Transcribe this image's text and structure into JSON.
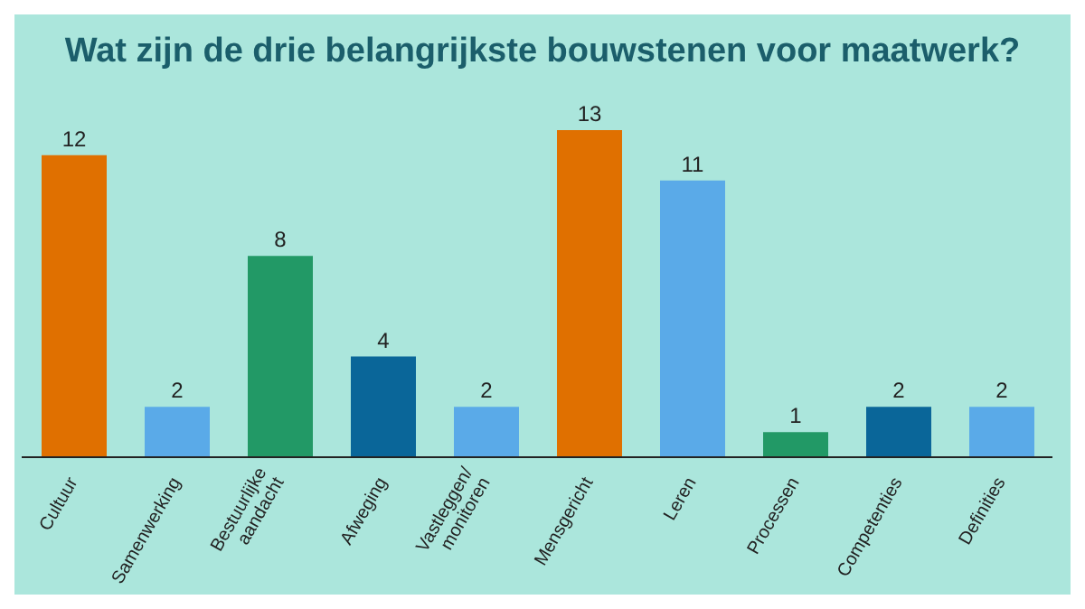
{
  "chart_data": {
    "type": "bar",
    "title": "Wat zijn de drie belangrijkste bouwstenen voor maatwerk?",
    "categories": [
      "Cultuur",
      "Samenwerking",
      "Bestuurlijke aandacht",
      "Afweging",
      "Vastleggen/ monitoren",
      "Mensgericht",
      "Leren",
      "Processen",
      "Competenties",
      "Definities"
    ],
    "values": [
      12,
      2,
      8,
      4,
      2,
      13,
      11,
      1,
      2,
      2
    ],
    "colors": [
      "#e07000",
      "#5aaae8",
      "#229966",
      "#0a6699",
      "#5aaae8",
      "#e07000",
      "#5aaae8",
      "#229966",
      "#0a6699",
      "#5aaae8"
    ],
    "data_labels": true,
    "tick_labels": "x",
    "grid": false,
    "legend": false
  }
}
